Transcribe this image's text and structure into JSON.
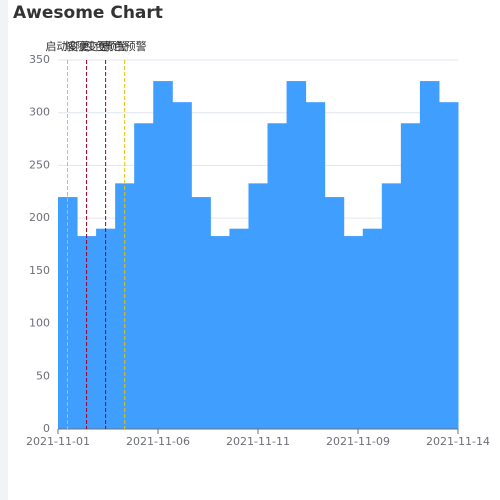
{
  "chart_data": {
    "type": "step",
    "title": "Awesome Chart",
    "categories": [
      "2021-11-01",
      null,
      null,
      null,
      null,
      "2021-11-06",
      null,
      null,
      null,
      null,
      "2021-11-11",
      null,
      null,
      null,
      null,
      "2021-11-09",
      null,
      null,
      null,
      null,
      "2021-11-14"
    ],
    "values": [
      220,
      183,
      190,
      233,
      290,
      330,
      310,
      220,
      183,
      190,
      233,
      290,
      330,
      310,
      220,
      183,
      190,
      233,
      290,
      330,
      310
    ],
    "color": "#409eff",
    "ylim": [
      0,
      350
    ],
    "yticks": [
      0,
      50,
      100,
      150,
      200,
      250,
      300,
      350
    ],
    "grid": true,
    "mark_lines": [
      {
        "name": "启动变更",
        "x": 0.5,
        "color": "#e6c300"
      },
      {
        "name": "解除变更",
        "x": 1.5,
        "color": "#a0001e"
      },
      {
        "name": "红色预警",
        "x": 2.5,
        "color": "#a0001e"
      },
      {
        "name": "黄色预警",
        "x": 3.5,
        "color": "#e6c300"
      }
    ]
  }
}
